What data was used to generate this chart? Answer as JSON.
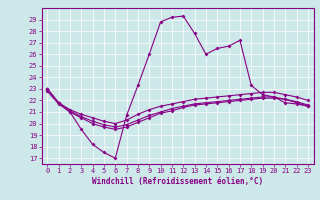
{
  "xlabel": "Windchill (Refroidissement éolien,°C)",
  "xlim": [
    -0.5,
    23.5
  ],
  "ylim": [
    16.5,
    30.0
  ],
  "xticks": [
    0,
    1,
    2,
    3,
    4,
    5,
    6,
    7,
    8,
    9,
    10,
    11,
    12,
    13,
    14,
    15,
    16,
    17,
    18,
    19,
    20,
    21,
    22,
    23
  ],
  "yticks": [
    17,
    18,
    19,
    20,
    21,
    22,
    23,
    24,
    25,
    26,
    27,
    28,
    29
  ],
  "bg_color": "#cce8e8",
  "line_color": "#880088",
  "grid_color": "#ffffff",
  "line1": [
    23.0,
    21.8,
    21.0,
    19.5,
    18.2,
    17.5,
    17.0,
    20.7,
    23.3,
    26.0,
    28.8,
    29.2,
    29.3,
    27.8,
    26.0,
    26.5,
    26.7,
    27.2,
    23.3,
    22.5,
    22.3,
    21.8,
    21.7,
    21.5
  ],
  "line2": [
    23.0,
    21.8,
    21.2,
    20.8,
    20.5,
    20.2,
    20.0,
    20.3,
    20.8,
    21.2,
    21.5,
    21.7,
    21.9,
    22.1,
    22.2,
    22.3,
    22.4,
    22.5,
    22.6,
    22.7,
    22.7,
    22.5,
    22.3,
    22.0
  ],
  "line3": [
    23.0,
    21.8,
    21.1,
    20.6,
    20.2,
    19.9,
    19.7,
    19.9,
    20.3,
    20.7,
    21.0,
    21.3,
    21.5,
    21.7,
    21.8,
    21.9,
    22.0,
    22.1,
    22.2,
    22.3,
    22.3,
    22.1,
    21.9,
    21.6
  ],
  "line4": [
    22.8,
    21.7,
    21.0,
    20.5,
    20.0,
    19.7,
    19.5,
    19.7,
    20.1,
    20.5,
    20.9,
    21.1,
    21.4,
    21.6,
    21.7,
    21.8,
    21.9,
    22.0,
    22.1,
    22.2,
    22.2,
    22.1,
    21.8,
    21.5
  ]
}
